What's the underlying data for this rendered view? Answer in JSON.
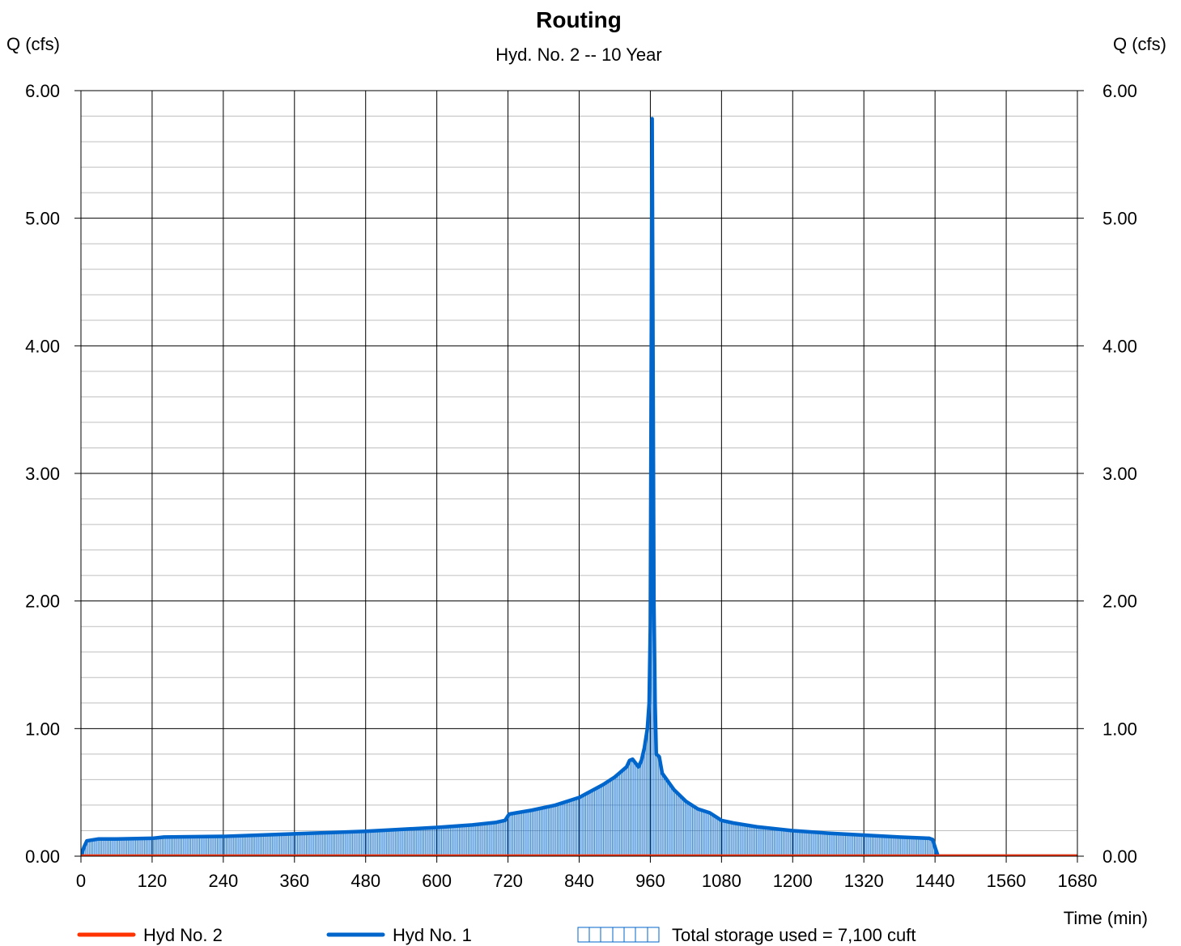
{
  "chart_data": {
    "type": "line",
    "title": "Routing",
    "subtitle": "Hyd. No. 2 -- 10 Year",
    "ylabel_left": "Q (cfs)",
    "ylabel_right": "Q (cfs)",
    "xlabel": "Time (min)",
    "xlim": [
      0,
      1680
    ],
    "ylim": [
      0,
      6
    ],
    "x_ticks": [
      "0",
      "120",
      "240",
      "360",
      "480",
      "600",
      "720",
      "840",
      "960",
      "1080",
      "1200",
      "1320",
      "1440",
      "1560",
      "1680"
    ],
    "y_ticks": [
      "0.00",
      "1.00",
      "2.00",
      "3.00",
      "4.00",
      "5.00",
      "6.00"
    ],
    "grid": true,
    "legend_position": "bottom",
    "series": [
      {
        "name": "Hyd No. 2",
        "color": "#ff3300",
        "x": [
          0,
          1680
        ],
        "y": [
          0,
          0
        ]
      },
      {
        "name": "Hyd No. 1",
        "color": "#0066cc",
        "x": [
          0,
          5,
          10,
          30,
          60,
          120,
          140,
          240,
          300,
          360,
          420,
          480,
          540,
          600,
          660,
          700,
          715,
          722,
          760,
          800,
          840,
          860,
          880,
          900,
          910,
          920,
          925,
          930,
          940,
          945,
          950,
          955,
          958,
          960,
          963,
          966,
          968,
          970,
          975,
          980,
          1000,
          1020,
          1040,
          1060,
          1080,
          1100,
          1140,
          1200,
          1260,
          1320,
          1380,
          1430,
          1436,
          1440,
          1445,
          1500,
          1560,
          1620,
          1680
        ],
        "y": [
          0,
          0.07,
          0.12,
          0.135,
          0.135,
          0.14,
          0.15,
          0.155,
          0.165,
          0.175,
          0.185,
          0.195,
          0.21,
          0.225,
          0.245,
          0.265,
          0.28,
          0.33,
          0.36,
          0.4,
          0.46,
          0.51,
          0.56,
          0.62,
          0.66,
          0.7,
          0.75,
          0.76,
          0.7,
          0.75,
          0.85,
          1.0,
          1.2,
          1.8,
          5.78,
          2.0,
          1.2,
          0.8,
          0.78,
          0.65,
          0.52,
          0.43,
          0.37,
          0.34,
          0.28,
          0.26,
          0.23,
          0.2,
          0.18,
          0.165,
          0.15,
          0.14,
          0.13,
          0.07,
          0,
          0,
          0,
          0,
          0
        ]
      }
    ],
    "storage_fill": {
      "name": "Total storage used = 7,100 cuft",
      "color": "#0066cc"
    }
  }
}
